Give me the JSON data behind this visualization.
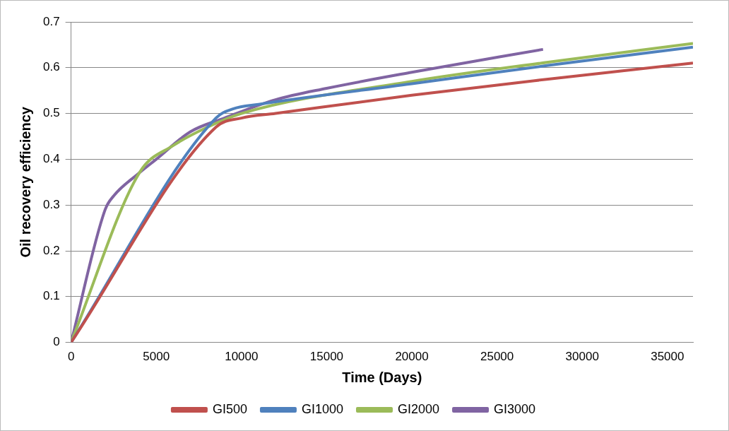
{
  "chart_data": {
    "type": "line",
    "xlabel": "Time (Days)",
    "ylabel": "Oil recovery efficiency",
    "xlim": [
      0,
      36500
    ],
    "xticks": [
      0,
      5000,
      10000,
      15000,
      20000,
      25000,
      30000,
      35000
    ],
    "ylim": [
      0,
      0.7
    ],
    "yticks": [
      0,
      0.1,
      0.2,
      0.3,
      0.4,
      0.5,
      0.6,
      0.7
    ],
    "grid": "y",
    "legend": "bottom",
    "marker": "none",
    "series": [
      {
        "name": "GI500",
        "color": "#c0504d",
        "x": [
          0,
          8500,
          10000,
          12000,
          20000,
          28000,
          36500
        ],
        "values": [
          0,
          0.47,
          0.49,
          0.5,
          0.54,
          0.575,
          0.61
        ]
      },
      {
        "name": "GI1000",
        "color": "#4f81bd",
        "x": [
          0,
          8500,
          9500,
          11000,
          20000,
          28000,
          36500
        ],
        "values": [
          0,
          0.49,
          0.51,
          0.52,
          0.565,
          0.605,
          0.645
        ]
      },
      {
        "name": "GI2000",
        "color": "#9bbb59",
        "x": [
          0,
          4000,
          6000,
          8000,
          10000,
          20000,
          28000,
          36500
        ],
        "values": [
          0,
          0.37,
          0.43,
          0.47,
          0.5,
          0.57,
          0.612,
          0.653
        ]
      },
      {
        "name": "GI3000",
        "color": "#8064a2",
        "x": [
          0,
          2000,
          2500,
          4000,
          5000,
          7000,
          9000,
          12000,
          15000,
          20000,
          27700
        ],
        "values": [
          0,
          0.29,
          0.32,
          0.37,
          0.4,
          0.46,
          0.49,
          0.53,
          0.555,
          0.59,
          0.64
        ]
      }
    ]
  }
}
